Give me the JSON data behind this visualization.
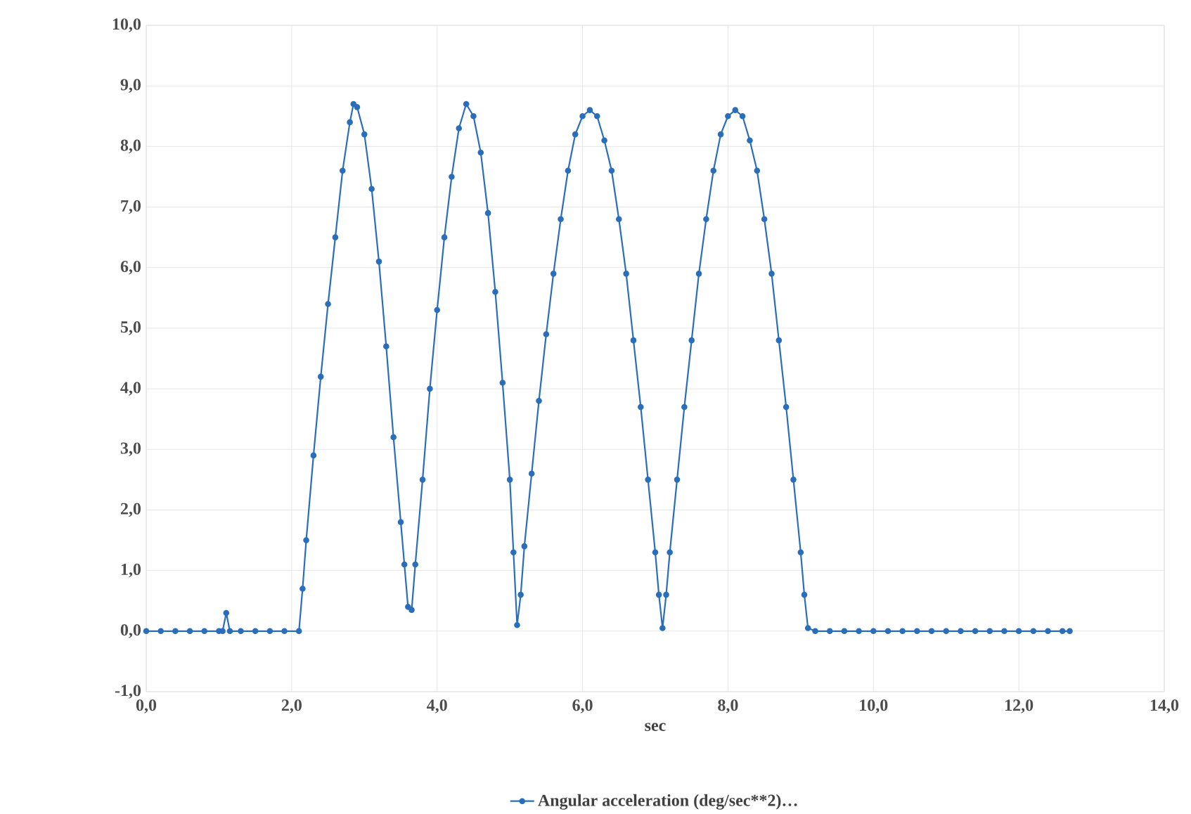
{
  "chart_data": {
    "type": "line",
    "xlabel": "sec",
    "grid": true,
    "legend": "bottom",
    "marker": "circle",
    "line_style": "solid",
    "xlim": [
      0,
      14
    ],
    "ylim": [
      -1,
      10
    ],
    "xticks": [
      {
        "value": 0,
        "label": "0,0"
      },
      {
        "value": 2,
        "label": "2,0"
      },
      {
        "value": 4,
        "label": "4,0"
      },
      {
        "value": 6,
        "label": "6,0"
      },
      {
        "value": 8,
        "label": "8,0"
      },
      {
        "value": 10,
        "label": "10,0"
      },
      {
        "value": 12,
        "label": "12,0"
      },
      {
        "value": 14,
        "label": "14,0"
      }
    ],
    "yticks": [
      {
        "value": -1,
        "label": "-1,0"
      },
      {
        "value": 0,
        "label": "0,0"
      },
      {
        "value": 1,
        "label": "1,0"
      },
      {
        "value": 2,
        "label": "2,0"
      },
      {
        "value": 3,
        "label": "3,0"
      },
      {
        "value": 4,
        "label": "4,0"
      },
      {
        "value": 5,
        "label": "5,0"
      },
      {
        "value": 6,
        "label": "6,0"
      },
      {
        "value": 7,
        "label": "7,0"
      },
      {
        "value": 8,
        "label": "8,0"
      },
      {
        "value": 9,
        "label": "9,0"
      },
      {
        "value": 10,
        "label": "10,0"
      }
    ],
    "series": [
      {
        "name": "Angular acceleration (deg/sec**2)…",
        "color": "#2a6ebb",
        "x": [
          0,
          0.2,
          0.4,
          0.6,
          0.8,
          1.0,
          1.05,
          1.1,
          1.15,
          1.3,
          1.5,
          1.7,
          1.9,
          2.1,
          2.15,
          2.2,
          2.3,
          2.4,
          2.5,
          2.6,
          2.7,
          2.8,
          2.85,
          2.9,
          3.0,
          3.1,
          3.2,
          3.3,
          3.4,
          3.5,
          3.55,
          3.6,
          3.65,
          3.7,
          3.8,
          3.9,
          4.0,
          4.1,
          4.2,
          4.3,
          4.4,
          4.5,
          4.6,
          4.7,
          4.8,
          4.9,
          5.0,
          5.05,
          5.1,
          5.15,
          5.2,
          5.3,
          5.4,
          5.5,
          5.6,
          5.7,
          5.8,
          5.9,
          6.0,
          6.1,
          6.2,
          6.3,
          6.4,
          6.5,
          6.6,
          6.7,
          6.8,
          6.9,
          7.0,
          7.05,
          7.1,
          7.15,
          7.2,
          7.3,
          7.4,
          7.5,
          7.6,
          7.7,
          7.8,
          7.9,
          8.0,
          8.1,
          8.2,
          8.3,
          8.4,
          8.5,
          8.6,
          8.7,
          8.8,
          8.9,
          9.0,
          9.05,
          9.1,
          9.2,
          9.4,
          9.6,
          9.8,
          10.0,
          10.2,
          10.4,
          10.6,
          10.8,
          11.0,
          11.2,
          11.4,
          11.6,
          11.8,
          12.0,
          12.2,
          12.4,
          12.6,
          12.7
        ],
        "values": [
          0,
          0,
          0,
          0,
          0,
          0,
          0,
          0.3,
          0,
          0,
          0,
          0,
          0,
          0,
          0.7,
          1.5,
          2.9,
          4.2,
          5.4,
          6.5,
          7.6,
          8.4,
          8.7,
          8.65,
          8.2,
          7.3,
          6.1,
          4.7,
          3.2,
          1.8,
          1.1,
          0.4,
          0.35,
          1.1,
          2.5,
          4.0,
          5.3,
          6.5,
          7.5,
          8.3,
          8.7,
          8.5,
          7.9,
          6.9,
          5.6,
          4.1,
          2.5,
          1.3,
          0.1,
          0.6,
          1.4,
          2.6,
          3.8,
          4.9,
          5.9,
          6.8,
          7.6,
          8.2,
          8.5,
          8.6,
          8.5,
          8.1,
          7.6,
          6.8,
          5.9,
          4.8,
          3.7,
          2.5,
          1.3,
          0.6,
          0.05,
          0.6,
          1.3,
          2.5,
          3.7,
          4.8,
          5.9,
          6.8,
          7.6,
          8.2,
          8.5,
          8.6,
          8.5,
          8.1,
          7.6,
          6.8,
          5.9,
          4.8,
          3.7,
          2.5,
          1.3,
          0.6,
          0.05,
          0,
          0,
          0,
          0,
          0,
          0,
          0,
          0,
          0,
          0,
          0,
          0,
          0,
          0,
          0,
          0,
          0,
          0,
          0
        ]
      }
    ]
  }
}
